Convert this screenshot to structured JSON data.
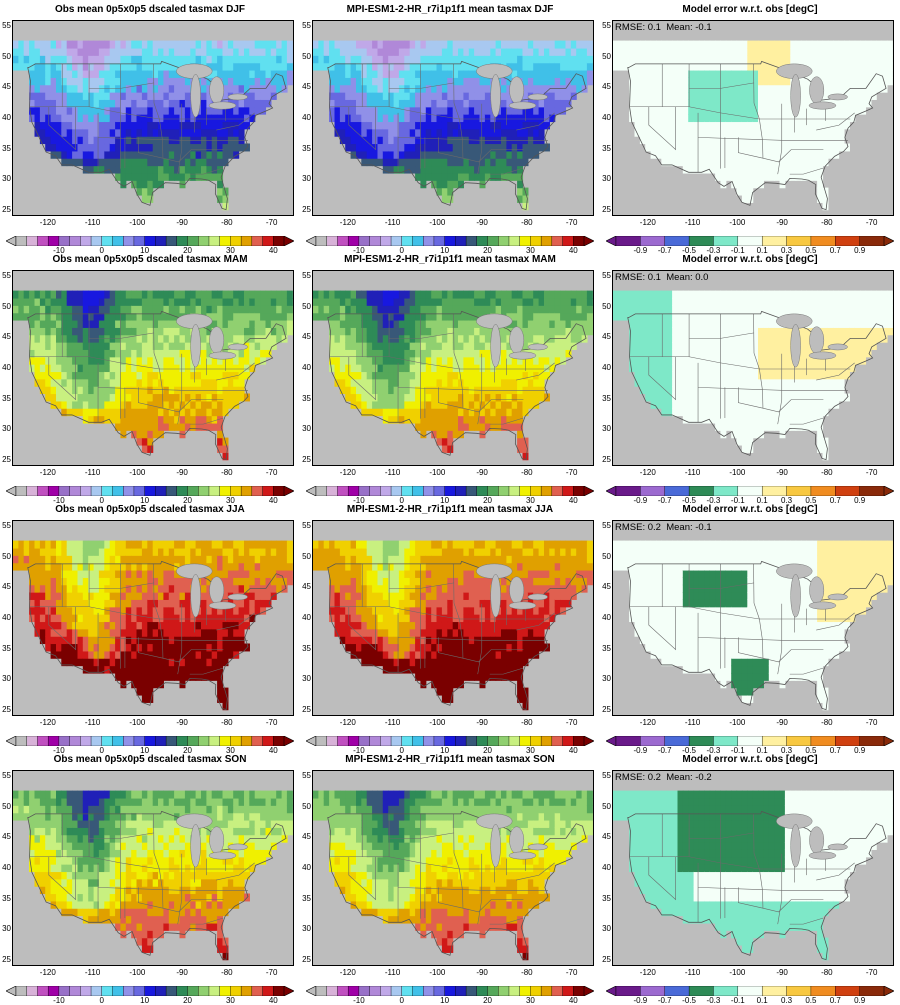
{
  "panels": [
    {
      "title": "Obs mean 0p5x0p5 dscaled tasmax DJF",
      "kind": "obs",
      "season": "DJF"
    },
    {
      "title": "MPI-ESM1-2-HR_r7i1p1f1 mean tasmax DJF",
      "kind": "model",
      "season": "DJF"
    },
    {
      "title": "Model error w.r.t. obs [degC]",
      "kind": "err",
      "season": "DJF",
      "rmse": "RMSE: 0.1",
      "mean": "Mean: -0.1"
    },
    {
      "title": "Obs mean 0p5x0p5 dscaled tasmax MAM",
      "kind": "obs",
      "season": "MAM"
    },
    {
      "title": "MPI-ESM1-2-HR_r7i1p1f1 mean tasmax MAM",
      "kind": "model",
      "season": "MAM"
    },
    {
      "title": "Model error w.r.t. obs [degC]",
      "kind": "err",
      "season": "MAM",
      "rmse": "RMSE: 0.1",
      "mean": "Mean: 0.0"
    },
    {
      "title": "Obs mean 0p5x0p5 dscaled tasmax JJA",
      "kind": "obs",
      "season": "JJA"
    },
    {
      "title": "MPI-ESM1-2-HR_r7i1p1f1 mean tasmax JJA",
      "kind": "model",
      "season": "JJA"
    },
    {
      "title": "Model error w.r.t. obs [degC]",
      "kind": "err",
      "season": "JJA",
      "rmse": "RMSE: 0.2",
      "mean": "Mean: -0.1"
    },
    {
      "title": "Obs mean 0p5x0p5 dscaled tasmax SON",
      "kind": "obs",
      "season": "SON"
    },
    {
      "title": "MPI-ESM1-2-HR_r7i1p1f1 mean tasmax SON",
      "kind": "model",
      "season": "SON"
    },
    {
      "title": "Model error w.r.t. obs [degC]",
      "kind": "err",
      "season": "SON",
      "rmse": "RMSE: 0.2",
      "mean": "Mean: -0.2"
    }
  ],
  "chart_data": {
    "type": "heatmap",
    "variable": "tasmax",
    "lat_ticks": [
      25,
      30,
      35,
      40,
      45,
      50,
      55
    ],
    "lon_ticks": [
      -120,
      -110,
      -100,
      -90,
      -80,
      -70
    ],
    "lat_range": [
      24,
      56
    ],
    "lon_range": [
      -128,
      -65
    ],
    "temp_colorbar": {
      "tick_labels": [
        "-10",
        "0",
        "10",
        "20",
        "30",
        "40"
      ],
      "tick_values": [
        -10,
        0,
        10,
        20,
        30,
        40
      ],
      "bounds": [
        -20,
        -17.5,
        -15,
        -12.5,
        -10,
        -7.5,
        -5,
        -2.5,
        0,
        2.5,
        5,
        7.5,
        10,
        12.5,
        15,
        17.5,
        20,
        22.5,
        25,
        27.5,
        30,
        32.5,
        35,
        37.5,
        40
      ],
      "colors": [
        "#bdbdbd",
        "#d8b2d8",
        "#c050c0",
        "#a000a8",
        "#9870c8",
        "#b088d8",
        "#c0a8e8",
        "#a8c8f0",
        "#60e0f0",
        "#40c0e8",
        "#9090e8",
        "#6868e0",
        "#1818e0",
        "#2020b8",
        "#385878",
        "#2e8b57",
        "#55a85a",
        "#90d070",
        "#c8f080",
        "#f0f000",
        "#f0d000",
        "#e0a000",
        "#e06050",
        "#d01818",
        "#7a0000"
      ]
    },
    "error_colorbar": {
      "tick_labels": [
        "-0.9",
        "-0.7",
        "-0.5",
        "-0.3",
        "-0.1",
        "0.1",
        "0.3",
        "0.5",
        "0.7",
        "0.9"
      ],
      "tick_values": [
        -0.9,
        -0.7,
        -0.5,
        -0.3,
        -0.1,
        0.1,
        0.3,
        0.5,
        0.7,
        0.9
      ],
      "colors": [
        "#6a1a8a",
        "#9c6ad0",
        "#4a6ad8",
        "#2e8b57",
        "#7ee8c8",
        "#f4fff8",
        "#fff0a0",
        "#f8c840",
        "#f08c20",
        "#d04010",
        "#8a2a0a"
      ]
    }
  }
}
